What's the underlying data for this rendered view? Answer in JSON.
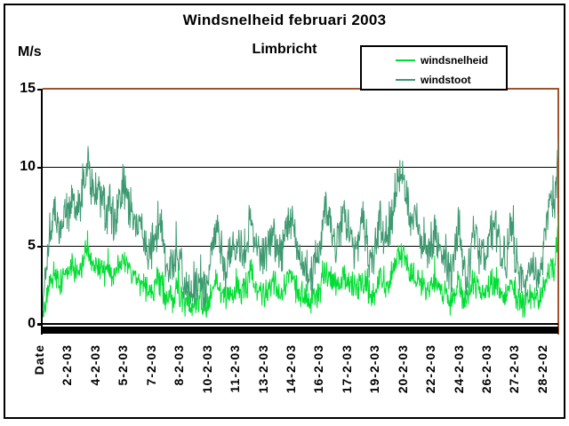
{
  "chart_data": {
    "type": "line",
    "title": "Windsnelheid februari 2003",
    "subtitle": "Limbricht",
    "ylabel": "M/s",
    "ylim": [
      0,
      15
    ],
    "yticks": [
      0,
      5,
      10,
      15
    ],
    "gridlines_at": [
      5,
      10
    ],
    "grid": "horizontal",
    "legend_position": "top-right",
    "x_tick_labels": [
      "Date",
      "2-2-03",
      "4-2-03",
      "5-2-03",
      "7-2-03",
      "8-2-03",
      "10-2-03",
      "11-2-03",
      "13-2-03",
      "14-2-03",
      "16-2-03",
      "17-2-03",
      "19-2-03",
      "20-2-03",
      "22-2-03",
      "24-2-03",
      "26-2-03",
      "27-2-03",
      "28-2-02"
    ],
    "legend": {
      "entries": [
        {
          "label": "windsnelheid",
          "color": "#00dd33"
        },
        {
          "label": "windstoot",
          "color": "#3d9970"
        }
      ]
    },
    "series": [
      {
        "name": "windsnelheid",
        "color": "#00dd33",
        "unit": "M/s",
        "samples_per_day": 5,
        "noise_amplitude": 0.75,
        "values": [
          0.5,
          1.8,
          2.7,
          3.2,
          2.9,
          2.7,
          3.4,
          3.2,
          3.6,
          3.2,
          3.4,
          4.1,
          4.7,
          4.1,
          3.6,
          3.8,
          3.6,
          3.2,
          3.4,
          2.9,
          3.2,
          3.8,
          4.1,
          3.6,
          3.2,
          2.9,
          2.7,
          2.5,
          2.3,
          2.0,
          2.3,
          2.9,
          2.7,
          1.8,
          1.4,
          1.6,
          2.3,
          1.8,
          1.4,
          1.1,
          0.9,
          1.1,
          1.4,
          1.1,
          0.9,
          1.4,
          2.5,
          2.7,
          2.0,
          1.6,
          1.8,
          2.3,
          2.0,
          2.3,
          2.0,
          2.3,
          3.4,
          2.7,
          2.3,
          2.0,
          2.0,
          2.5,
          2.7,
          2.3,
          2.0,
          2.3,
          2.9,
          3.1,
          2.5,
          2.0,
          1.8,
          1.6,
          1.4,
          1.6,
          1.8,
          2.3,
          3.5,
          3.2,
          2.7,
          2.3,
          2.5,
          3.2,
          2.9,
          2.5,
          2.3,
          2.3,
          2.9,
          2.5,
          2.0,
          1.8,
          2.3,
          3.2,
          2.3,
          2.7,
          3.2,
          3.6,
          4.3,
          4.6,
          3.8,
          3.2,
          3.2,
          2.9,
          2.5,
          2.3,
          2.0,
          2.3,
          2.7,
          2.3,
          2.0,
          1.8,
          1.4,
          1.8,
          2.9,
          1.8,
          1.4,
          1.8,
          2.7,
          2.5,
          2.0,
          1.8,
          2.3,
          2.9,
          2.7,
          2.3,
          2.0,
          1.8,
          2.9,
          2.3,
          1.6,
          1.4,
          1.1,
          1.6,
          1.8,
          1.4,
          1.6,
          2.3,
          3.2,
          3.8,
          3.4,
          6.4
        ]
      },
      {
        "name": "windstoot",
        "color": "#3d9970",
        "unit": "M/s",
        "samples_per_day": 5,
        "noise_amplitude": 1.25,
        "values": [
          1.0,
          4.0,
          6.0,
          7.0,
          6.5,
          6.0,
          7.5,
          7.0,
          8.0,
          7.0,
          7.5,
          9.0,
          10.5,
          9.0,
          8.0,
          8.5,
          8.0,
          7.0,
          7.5,
          6.5,
          7.0,
          8.5,
          9.0,
          8.0,
          7.0,
          6.5,
          6.0,
          5.5,
          5.0,
          4.5,
          5.0,
          6.5,
          6.0,
          4.0,
          3.0,
          3.5,
          5.0,
          4.0,
          3.0,
          2.5,
          2.0,
          2.5,
          3.0,
          2.5,
          2.0,
          3.0,
          5.5,
          6.0,
          4.5,
          3.5,
          4.0,
          5.0,
          4.5,
          5.0,
          4.5,
          5.0,
          7.5,
          6.0,
          5.0,
          4.5,
          4.5,
          5.5,
          6.0,
          5.0,
          4.5,
          5.0,
          6.5,
          6.8,
          5.5,
          4.5,
          4.0,
          3.5,
          3.0,
          3.5,
          4.0,
          5.0,
          7.8,
          7.0,
          6.0,
          5.0,
          5.5,
          7.0,
          6.5,
          5.5,
          5.0,
          5.0,
          6.5,
          5.5,
          4.5,
          4.0,
          5.0,
          7.0,
          5.0,
          6.0,
          7.0,
          8.0,
          9.5,
          10.3,
          8.5,
          7.0,
          7.0,
          6.5,
          5.5,
          5.0,
          4.5,
          5.0,
          6.0,
          5.0,
          4.5,
          4.0,
          3.0,
          4.0,
          6.5,
          4.0,
          3.0,
          4.0,
          6.0,
          5.5,
          4.5,
          4.0,
          5.0,
          6.5,
          6.0,
          5.0,
          4.5,
          4.0,
          6.5,
          5.0,
          3.5,
          3.0,
          2.5,
          3.5,
          4.0,
          3.0,
          3.5,
          5.0,
          7.0,
          8.5,
          7.5,
          11.5
        ]
      }
    ],
    "colors": {
      "plot_border_top_right": "#a0522d",
      "gridline": "#000000",
      "axis": "#000000",
      "background": "#ffffff"
    }
  }
}
